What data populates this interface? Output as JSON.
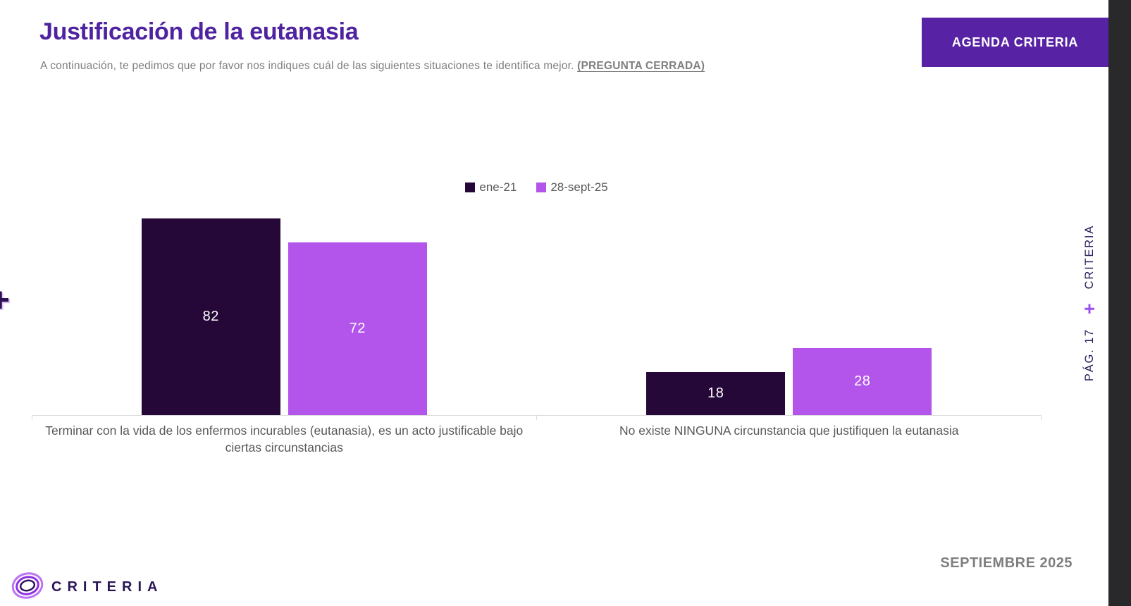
{
  "header": {
    "title": "Justificación de la eutanasia",
    "subtitle_prefix": "A continuación, te pedimos que por favor nos indiques cuál de las siguientes situaciones te identifica mejor. ",
    "subtitle_emphasis": "(PREGUNTA CERRADA)",
    "agenda_button_label": "AGENDA CRITERIA"
  },
  "chart_data": {
    "type": "bar",
    "categories": [
      "Terminar con la vida de los enfermos incurables (eutanasia), es un acto justificable bajo ciertas circunstancias",
      "No existe NINGUNA circunstancia que justifiquen la eutanasia"
    ],
    "series": [
      {
        "name": "ene-21",
        "color": "#250838",
        "values": [
          82,
          18
        ]
      },
      {
        "name": "28-sept-25",
        "color": "#b355ea",
        "values": [
          72,
          28
        ]
      }
    ],
    "ylim": [
      0,
      100
    ],
    "grid": false,
    "value_labels": "inside-center",
    "legend_position": "top-center"
  },
  "sidebar": {
    "brand_label": "CRITERIA",
    "plus_symbol": "+",
    "page_label": "PÁG. 17"
  },
  "decorations": {
    "edge_plus": "+"
  },
  "footer": {
    "brand_name": "CRITERIA",
    "date_label": "SEPTIEMBRE 2025"
  },
  "colors": {
    "accent_purple": "#4f239f",
    "button_purple": "#5722a3",
    "bar_dark": "#250838",
    "bar_light": "#b355ea",
    "side_strip": "#29292b",
    "text_gray": "#595959",
    "axis_gray": "#d9d9d9"
  }
}
